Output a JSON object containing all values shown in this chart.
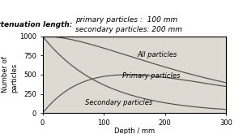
{
  "title_left": "Attenuation length:",
  "title_right": "primary particles :  100 mm\nsecondary particles: 200 mm",
  "ylabel": "Number of\nparticles",
  "xlabel": "Depth / mm",
  "xlim": [
    0,
    300
  ],
  "ylim": [
    0,
    1000
  ],
  "xticks": [
    0,
    100,
    200,
    300
  ],
  "yticks": [
    0,
    250,
    500,
    750,
    1000
  ],
  "lambda_primary": 100,
  "lambda_secondary": 200,
  "N0": 1000,
  "label_all": "All particles",
  "label_primary": "Primary particles",
  "label_secondary": "Secondary particles",
  "line_color": "#555555",
  "bg_color": "#dedad2",
  "title_fontsize": 6.5,
  "label_fontsize": 6.0,
  "tick_fontsize": 6,
  "axis_label_fontsize": 6.0
}
